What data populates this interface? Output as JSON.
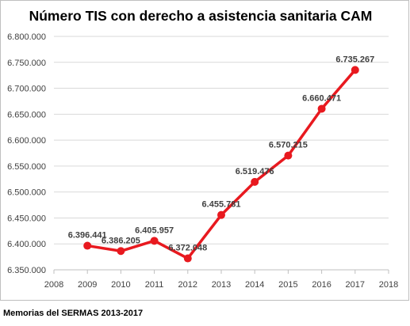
{
  "chart_data": {
    "type": "line",
    "title": "Número TIS con derecho a  asistencia sanitaria CAM",
    "xlabel": "",
    "ylabel": "",
    "x_ticks": [
      "2008",
      "2009",
      "2010",
      "2011",
      "2012",
      "2013",
      "2014",
      "2015",
      "2016",
      "2017",
      "2018"
    ],
    "xlim": [
      2008,
      2018
    ],
    "y_ticks": [
      "6.350.000",
      "6.400.000",
      "6.450.000",
      "6.500.000",
      "6.550.000",
      "6.600.000",
      "6.650.000",
      "6.700.000",
      "6.750.000",
      "6.800.000"
    ],
    "ylim": [
      6350000,
      6800000
    ],
    "grid": true,
    "series": [
      {
        "color": "#e8191f",
        "x": [
          2009,
          2010,
          2011,
          2012,
          2013,
          2014,
          2015,
          2016,
          2017
        ],
        "values": [
          6396441,
          6386205,
          6405957,
          6372048,
          6455781,
          6519476,
          6570215,
          6660471,
          6735267
        ],
        "data_labels": [
          "6.396.441",
          "6.386.205",
          "6.405.957",
          "6.372.048",
          "6.455.781",
          "6.519.476",
          "6.570.215",
          "6.660.471",
          "6.735.267"
        ]
      }
    ]
  },
  "footer": {
    "source": "Memorias del SERMAS 2013-2017"
  }
}
